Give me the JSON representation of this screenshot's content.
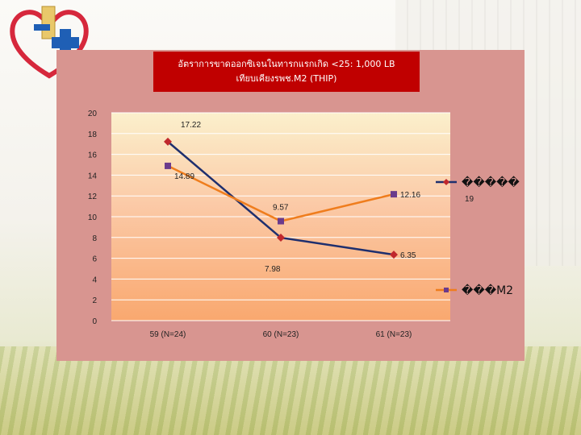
{
  "slide": {
    "title_line1": "อัตราการขาดออกซิเจนในทารกแรกเกิด <25: 1,000 LB",
    "title_line2": "เทียบเคียงรพช.M2 (THIP)",
    "colors": {
      "panel": "#d89590",
      "title_bg": "#c00000",
      "logo_red": "#d6283c",
      "logo_blue": "#1f5fb5"
    }
  },
  "chart_data": {
    "type": "line",
    "categories": [
      "59 (N=24)",
      "60 (N=23)",
      "61 (N=23)"
    ],
    "ylim": [
      0,
      20
    ],
    "yticks": [
      0,
      2,
      4,
      6,
      8,
      10,
      12,
      14,
      16,
      18,
      20
    ],
    "grid": true,
    "legend_position": "right",
    "series": [
      {
        "name": "�����",
        "values": [
          17.22,
          7.98,
          6.35
        ],
        "labels": [
          "17.22",
          "7.98",
          "6.35"
        ],
        "color": "#1e2f6e",
        "marker_color": "#c0282d",
        "marker": "diamond"
      },
      {
        "name": "���M2",
        "values": [
          14.89,
          9.57,
          12.16
        ],
        "labels": [
          "14.89",
          "9.57",
          "12.16"
        ],
        "color": "#ef7d1d",
        "marker_color": "#6b3b8c",
        "marker": "square"
      }
    ],
    "legend_extra_text": "19"
  }
}
